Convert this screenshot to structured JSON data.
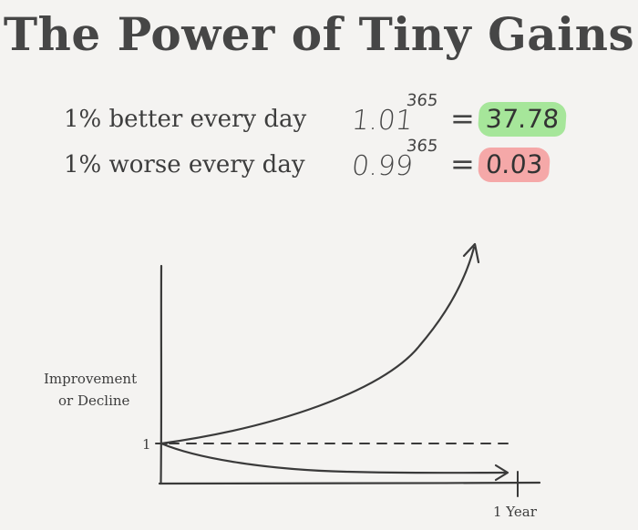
{
  "title": "The Power of Tiny Gains",
  "equations": [
    {
      "label": "1% better every day",
      "base": "1.01",
      "exponent": "365",
      "equals": "=",
      "result": "37.78",
      "highlight_color": "#a6e69a"
    },
    {
      "label": "1% worse every day",
      "base": "0.99",
      "exponent": "365",
      "equals": "=",
      "result": "0.03",
      "highlight_color": "#f5a8a8"
    }
  ],
  "chart_data": {
    "type": "line",
    "ylabel_line1": "Improvement",
    "ylabel_line2": "or Decline",
    "baseline_label": "1",
    "xlabel": "1 Year",
    "baseline_value": 1,
    "grid": false,
    "line_color": "#3a3a3a"
  }
}
